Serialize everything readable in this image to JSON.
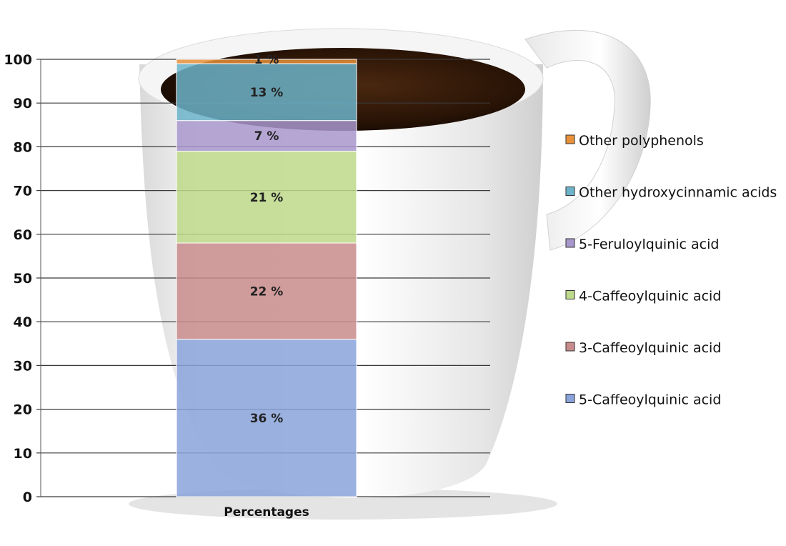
{
  "chart_data": {
    "type": "bar",
    "stacked": true,
    "categories": [
      "Percentages"
    ],
    "ylim": [
      0,
      100
    ],
    "yticks": [
      0,
      10,
      20,
      30,
      40,
      50,
      60,
      70,
      80,
      90,
      100
    ],
    "grid": true,
    "legend_position": "right",
    "series": [
      {
        "name": "5-Caffeoylquinic acid",
        "values": [
          36
        ],
        "label": "36 %",
        "color": "#8aa3db"
      },
      {
        "name": "3-Caffeoylquinic acid",
        "values": [
          22
        ],
        "label": "22 %",
        "color": "#c98b8b"
      },
      {
        "name": "4-Caffeoylquinic acid",
        "values": [
          21
        ],
        "label": "21 %",
        "color": "#bdd98a"
      },
      {
        "name": "5-Feruloylquinic acid",
        "values": [
          7
        ],
        "label": "7 %",
        "color": "#a897cc"
      },
      {
        "name": "Other hydroxycinnamic acids",
        "values": [
          13
        ],
        "label": "13 %",
        "color": "#6cb3c9"
      },
      {
        "name": "Other polyphenols",
        "values": [
          1
        ],
        "label": "1 %",
        "color": "#e8913a"
      }
    ],
    "legend_order": [
      "Other polyphenols",
      "Other hydroxycinnamic acids",
      "5-Feruloylquinic acid",
      "4-Caffeoylquinic acid",
      "3-Caffeoylquinic acid",
      "5-Caffeoylquinic acid"
    ]
  }
}
